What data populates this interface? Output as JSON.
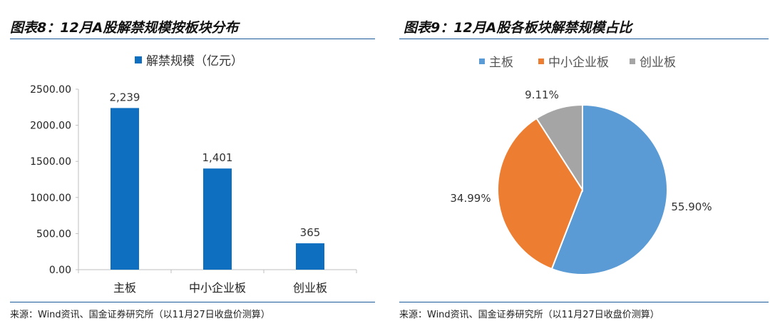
{
  "left_panel": {
    "title": "图表8：12月A股解禁规模按板块分布",
    "source": "来源：Wind资讯、国金证券研究所（以11月27日收盘价测算）"
  },
  "right_panel": {
    "title": "图表9：12月A股各板块解禁规模占比",
    "source": "来源：Wind资讯、国金证券研究所（以11月27日收盘价测算）"
  },
  "colors": {
    "bar": "#0e6fc0",
    "rule": "#1a5a9a",
    "pie_main": "#5b9bd5",
    "pie_sme": "#ed7d31",
    "pie_chinext": "#a5a5a5"
  },
  "chart_data": [
    {
      "type": "bar",
      "categories": [
        "主板",
        "中小企业板",
        "创业板"
      ],
      "series": [
        {
          "name": "解禁规模（亿元）",
          "values": [
            2239,
            1401,
            365
          ]
        }
      ],
      "data_labels": [
        "2,239",
        "1,401",
        "365"
      ],
      "yticks": [
        "0.00",
        "500.00",
        "1000.00",
        "1500.00",
        "2000.00",
        "2500.00"
      ],
      "ylim": [
        0,
        2500
      ],
      "legend_position": "top",
      "grid": false
    },
    {
      "type": "pie",
      "labels": [
        "主板",
        "中小企业板",
        "创业板"
      ],
      "values": [
        55.9,
        34.99,
        9.11
      ],
      "data_labels": [
        "55.90%",
        "34.99%",
        "9.11%"
      ],
      "legend_position": "top"
    }
  ]
}
